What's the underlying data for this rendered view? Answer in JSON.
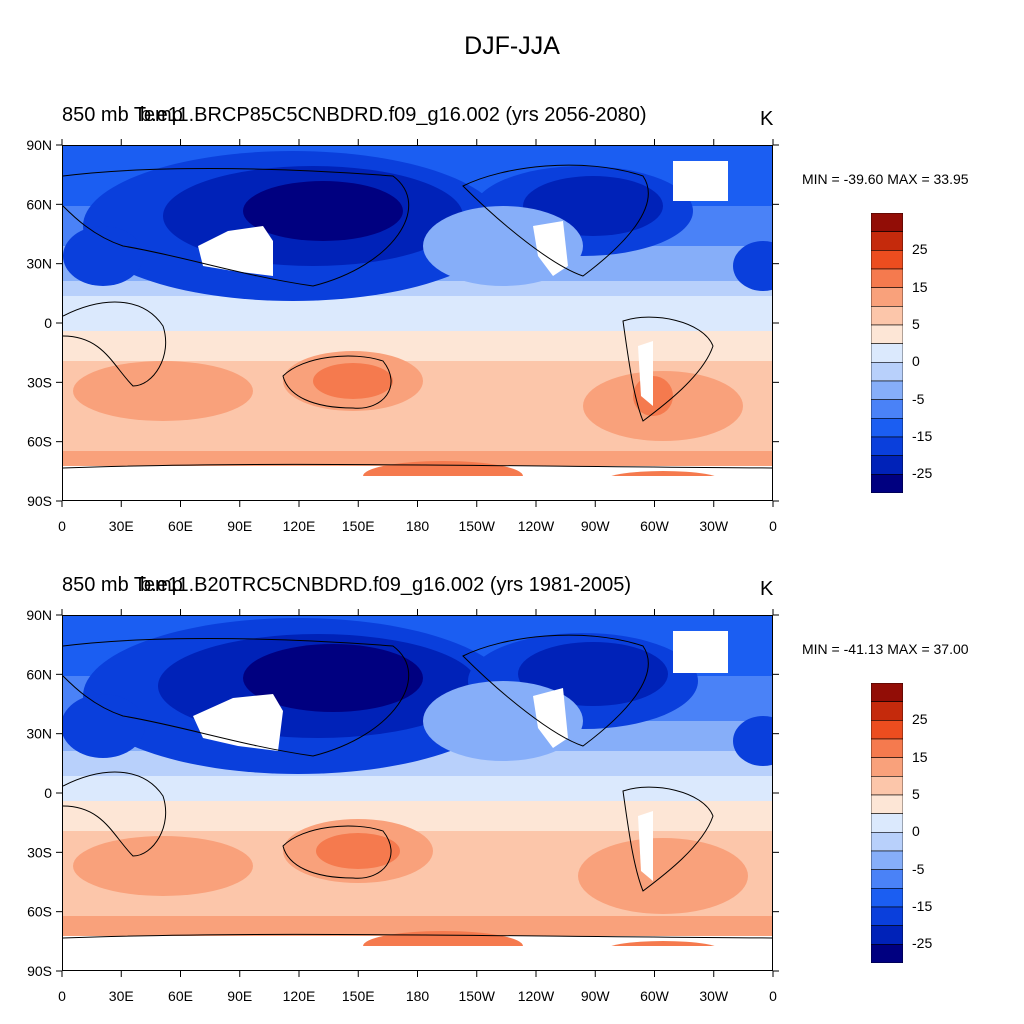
{
  "figure": {
    "title": "DJF-JJA"
  },
  "panels": [
    {
      "title_left": "850 mb Temp",
      "title_case": "b.e11.BRCP85C5CNBDRD.f09_g16.002 (yrs 2056-2080)",
      "units": "K",
      "min_label": "MIN = -39.60",
      "max_label": "MAX =  33.95"
    },
    {
      "title_left": "850 mb Temp",
      "title_case": "b.e11.B20TRC5CNBDRD.f09_g16.002 (yrs 1981-2005)",
      "units": "K",
      "min_label": "MIN = -41.13",
      "max_label": "MAX =  37.00"
    }
  ],
  "axes": {
    "lat_labels": [
      "90N",
      "60N",
      "30N",
      "0",
      "30S",
      "60S",
      "90S"
    ],
    "lon_labels": [
      "0",
      "30E",
      "60E",
      "90E",
      "120E",
      "150E",
      "180",
      "150W",
      "120W",
      "90W",
      "60W",
      "30W",
      "0"
    ]
  },
  "colorbar": {
    "labels": [
      "25",
      "15",
      "5",
      "0",
      "-5",
      "-15",
      "-25"
    ],
    "levels": [
      -35,
      -30,
      -25,
      -20,
      -15,
      -10,
      -5,
      0,
      5,
      10,
      15,
      20,
      25,
      30,
      35
    ],
    "colors": [
      "#000080",
      "#0022b8",
      "#0a3fdc",
      "#1b5ef2",
      "#4a82f7",
      "#86aef9",
      "#b8d0fb",
      "#dbe9fd",
      "#fde6d6",
      "#fcc6aa",
      "#f9a17b",
      "#f57a4e",
      "#ec4d1f",
      "#c52a0c",
      "#920d06"
    ]
  },
  "chart_data": {
    "type": "heatmap",
    "title": "DJF-JJA",
    "units": "K",
    "x_axis": "longitude",
    "y_axis": "latitude",
    "xlim": [
      0,
      360
    ],
    "ylim": [
      -90,
      90
    ],
    "panels": [
      {
        "case": "b.e11.BRCP85C5CNBDRD.f09_g16.002 (yrs 2056-2080)",
        "min": -39.6,
        "max": 33.95
      },
      {
        "case": "b.e11.B20TRC5CNBDRD.f09_g16.002 (yrs 1981-2005)",
        "min": -41.13,
        "max": 37.0
      }
    ]
  }
}
